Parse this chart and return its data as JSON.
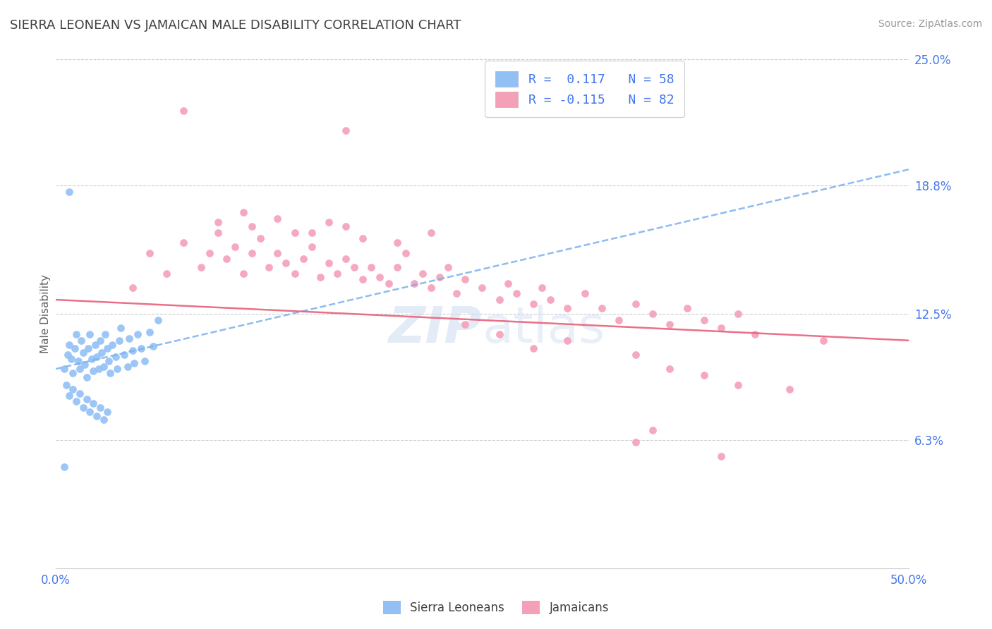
{
  "title": "SIERRA LEONEAN VS JAMAICAN MALE DISABILITY CORRELATION CHART",
  "source": "Source: ZipAtlas.com",
  "ylabel": "Male Disability",
  "xlim": [
    0.0,
    0.5
  ],
  "ylim": [
    0.0,
    0.25
  ],
  "xtick_labels": [
    "0.0%",
    "50.0%"
  ],
  "ytick_labels": [
    "6.3%",
    "12.5%",
    "18.8%",
    "25.0%"
  ],
  "ytick_values": [
    0.063,
    0.125,
    0.188,
    0.25
  ],
  "sl_color": "#92c0f5",
  "jam_color": "#f4a0b8",
  "trend_sl_color": "#7ab0ee",
  "trend_jam_color": "#e8607a",
  "background_color": "#ffffff",
  "grid_color": "#cccccc",
  "title_color": "#404040",
  "axis_label_color": "#606060",
  "tick_label_color": "#4477ee",
  "legend_text_color": "#4477ee",
  "watermark_color": "#c8d8f0",
  "sl_trend_x": [
    0.0,
    0.5
  ],
  "sl_trend_y": [
    0.098,
    0.196
  ],
  "jam_trend_x": [
    0.0,
    0.5
  ],
  "jam_trend_y": [
    0.132,
    0.112
  ],
  "sl_points": [
    [
      0.005,
      0.098
    ],
    [
      0.007,
      0.105
    ],
    [
      0.008,
      0.11
    ],
    [
      0.009,
      0.103
    ],
    [
      0.01,
      0.096
    ],
    [
      0.011,
      0.108
    ],
    [
      0.012,
      0.115
    ],
    [
      0.013,
      0.102
    ],
    [
      0.014,
      0.098
    ],
    [
      0.015,
      0.112
    ],
    [
      0.016,
      0.106
    ],
    [
      0.017,
      0.1
    ],
    [
      0.018,
      0.094
    ],
    [
      0.019,
      0.108
    ],
    [
      0.02,
      0.115
    ],
    [
      0.021,
      0.103
    ],
    [
      0.022,
      0.097
    ],
    [
      0.023,
      0.11
    ],
    [
      0.024,
      0.104
    ],
    [
      0.025,
      0.098
    ],
    [
      0.026,
      0.112
    ],
    [
      0.027,
      0.106
    ],
    [
      0.028,
      0.099
    ],
    [
      0.029,
      0.115
    ],
    [
      0.03,
      0.108
    ],
    [
      0.031,
      0.102
    ],
    [
      0.032,
      0.096
    ],
    [
      0.033,
      0.11
    ],
    [
      0.035,
      0.104
    ],
    [
      0.036,
      0.098
    ],
    [
      0.037,
      0.112
    ],
    [
      0.038,
      0.118
    ],
    [
      0.04,
      0.105
    ],
    [
      0.042,
      0.099
    ],
    [
      0.043,
      0.113
    ],
    [
      0.045,
      0.107
    ],
    [
      0.046,
      0.101
    ],
    [
      0.048,
      0.115
    ],
    [
      0.05,
      0.108
    ],
    [
      0.052,
      0.102
    ],
    [
      0.055,
      0.116
    ],
    [
      0.057,
      0.109
    ],
    [
      0.006,
      0.09
    ],
    [
      0.008,
      0.085
    ],
    [
      0.01,
      0.088
    ],
    [
      0.012,
      0.082
    ],
    [
      0.014,
      0.086
    ],
    [
      0.016,
      0.079
    ],
    [
      0.018,
      0.083
    ],
    [
      0.02,
      0.077
    ],
    [
      0.022,
      0.081
    ],
    [
      0.024,
      0.075
    ],
    [
      0.026,
      0.079
    ],
    [
      0.028,
      0.073
    ],
    [
      0.03,
      0.077
    ],
    [
      0.005,
      0.05
    ],
    [
      0.008,
      0.185
    ],
    [
      0.06,
      0.122
    ]
  ],
  "jam_points": [
    [
      0.045,
      0.138
    ],
    [
      0.055,
      0.155
    ],
    [
      0.065,
      0.145
    ],
    [
      0.075,
      0.16
    ],
    [
      0.085,
      0.148
    ],
    [
      0.09,
      0.155
    ],
    [
      0.095,
      0.165
    ],
    [
      0.1,
      0.152
    ],
    [
      0.105,
      0.158
    ],
    [
      0.11,
      0.145
    ],
    [
      0.115,
      0.155
    ],
    [
      0.12,
      0.162
    ],
    [
      0.125,
      0.148
    ],
    [
      0.13,
      0.155
    ],
    [
      0.135,
      0.15
    ],
    [
      0.14,
      0.145
    ],
    [
      0.145,
      0.152
    ],
    [
      0.15,
      0.158
    ],
    [
      0.155,
      0.143
    ],
    [
      0.16,
      0.15
    ],
    [
      0.165,
      0.145
    ],
    [
      0.17,
      0.152
    ],
    [
      0.175,
      0.148
    ],
    [
      0.18,
      0.142
    ],
    [
      0.185,
      0.148
    ],
    [
      0.19,
      0.143
    ],
    [
      0.195,
      0.14
    ],
    [
      0.2,
      0.148
    ],
    [
      0.205,
      0.155
    ],
    [
      0.21,
      0.14
    ],
    [
      0.215,
      0.145
    ],
    [
      0.22,
      0.138
    ],
    [
      0.225,
      0.143
    ],
    [
      0.23,
      0.148
    ],
    [
      0.235,
      0.135
    ],
    [
      0.24,
      0.142
    ],
    [
      0.25,
      0.138
    ],
    [
      0.26,
      0.132
    ],
    [
      0.265,
      0.14
    ],
    [
      0.27,
      0.135
    ],
    [
      0.28,
      0.13
    ],
    [
      0.285,
      0.138
    ],
    [
      0.29,
      0.132
    ],
    [
      0.3,
      0.128
    ],
    [
      0.31,
      0.135
    ],
    [
      0.32,
      0.128
    ],
    [
      0.33,
      0.122
    ],
    [
      0.34,
      0.13
    ],
    [
      0.35,
      0.125
    ],
    [
      0.36,
      0.12
    ],
    [
      0.37,
      0.128
    ],
    [
      0.38,
      0.122
    ],
    [
      0.39,
      0.118
    ],
    [
      0.4,
      0.125
    ],
    [
      0.41,
      0.115
    ],
    [
      0.075,
      0.225
    ],
    [
      0.095,
      0.17
    ],
    [
      0.11,
      0.175
    ],
    [
      0.14,
      0.165
    ],
    [
      0.16,
      0.17
    ],
    [
      0.18,
      0.162
    ],
    [
      0.2,
      0.16
    ],
    [
      0.22,
      0.165
    ],
    [
      0.115,
      0.168
    ],
    [
      0.13,
      0.172
    ],
    [
      0.15,
      0.165
    ],
    [
      0.17,
      0.168
    ],
    [
      0.17,
      0.215
    ],
    [
      0.24,
      0.12
    ],
    [
      0.26,
      0.115
    ],
    [
      0.28,
      0.108
    ],
    [
      0.3,
      0.112
    ],
    [
      0.34,
      0.105
    ],
    [
      0.36,
      0.098
    ],
    [
      0.38,
      0.095
    ],
    [
      0.4,
      0.09
    ],
    [
      0.43,
      0.088
    ],
    [
      0.35,
      0.068
    ],
    [
      0.39,
      0.055
    ],
    [
      0.34,
      0.062
    ],
    [
      0.45,
      0.112
    ]
  ]
}
